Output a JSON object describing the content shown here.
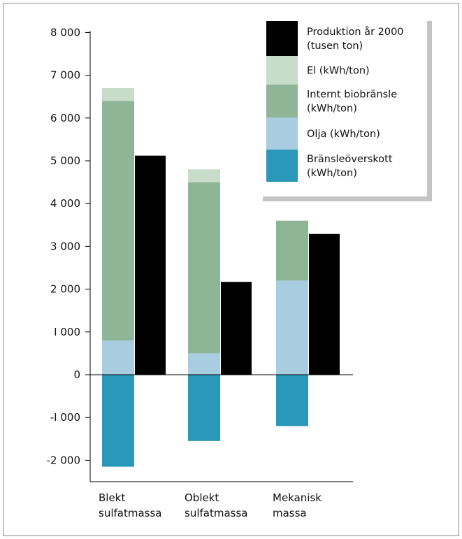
{
  "chart_data": {
    "type": "bar",
    "categories": [
      [
        "Blekt",
        "sulfatmassa"
      ],
      [
        "Oblekt",
        "sulfatmassa"
      ],
      [
        "Mekanisk",
        "massa"
      ]
    ],
    "ylim": [
      -2200,
      8000
    ],
    "yticks": [
      {
        "value": 8000,
        "label": "8 000"
      },
      {
        "value": 7000,
        "label": "7 000"
      },
      {
        "value": 6000,
        "label": "6 000"
      },
      {
        "value": 5000,
        "label": "5 000"
      },
      {
        "value": 4000,
        "label": "4 000"
      },
      {
        "value": 3000,
        "label": "3 000"
      },
      {
        "value": 2000,
        "label": "2 000"
      },
      {
        "value": 1000,
        "label": "I 000"
      },
      {
        "value": 0,
        "label": "0"
      },
      {
        "value": -1000,
        "label": "-I 000"
      },
      {
        "value": -2000,
        "label": "-2 000"
      }
    ],
    "stacked_series": [
      {
        "name": [
          "Olja (kWh/ton)"
        ],
        "color": "#a8cde0",
        "values": [
          800,
          500,
          2200
        ]
      },
      {
        "name": [
          "Internt biobränsle",
          "(kWh/ton)"
        ],
        "color": "#8fb597",
        "values": [
          5600,
          4000,
          1400
        ]
      },
      {
        "name": [
          "El (kWh/ton)"
        ],
        "color": "#c8dcca",
        "values": [
          300,
          300,
          0
        ]
      }
    ],
    "negative_series": {
      "name": [
        "Bränsleöverskott",
        "(kWh/ton)"
      ],
      "color": "#2a98b8",
      "values": [
        -2150,
        -1550,
        -1200
      ]
    },
    "side_series": {
      "name": [
        "Produktion år 2000",
        "(tusen ton)"
      ],
      "color": "#000000",
      "values": [
        5120,
        2170,
        3290
      ]
    },
    "legend_order": [
      "side",
      "el",
      "bio",
      "olja",
      "neg"
    ],
    "legend_placement": "top-right"
  }
}
